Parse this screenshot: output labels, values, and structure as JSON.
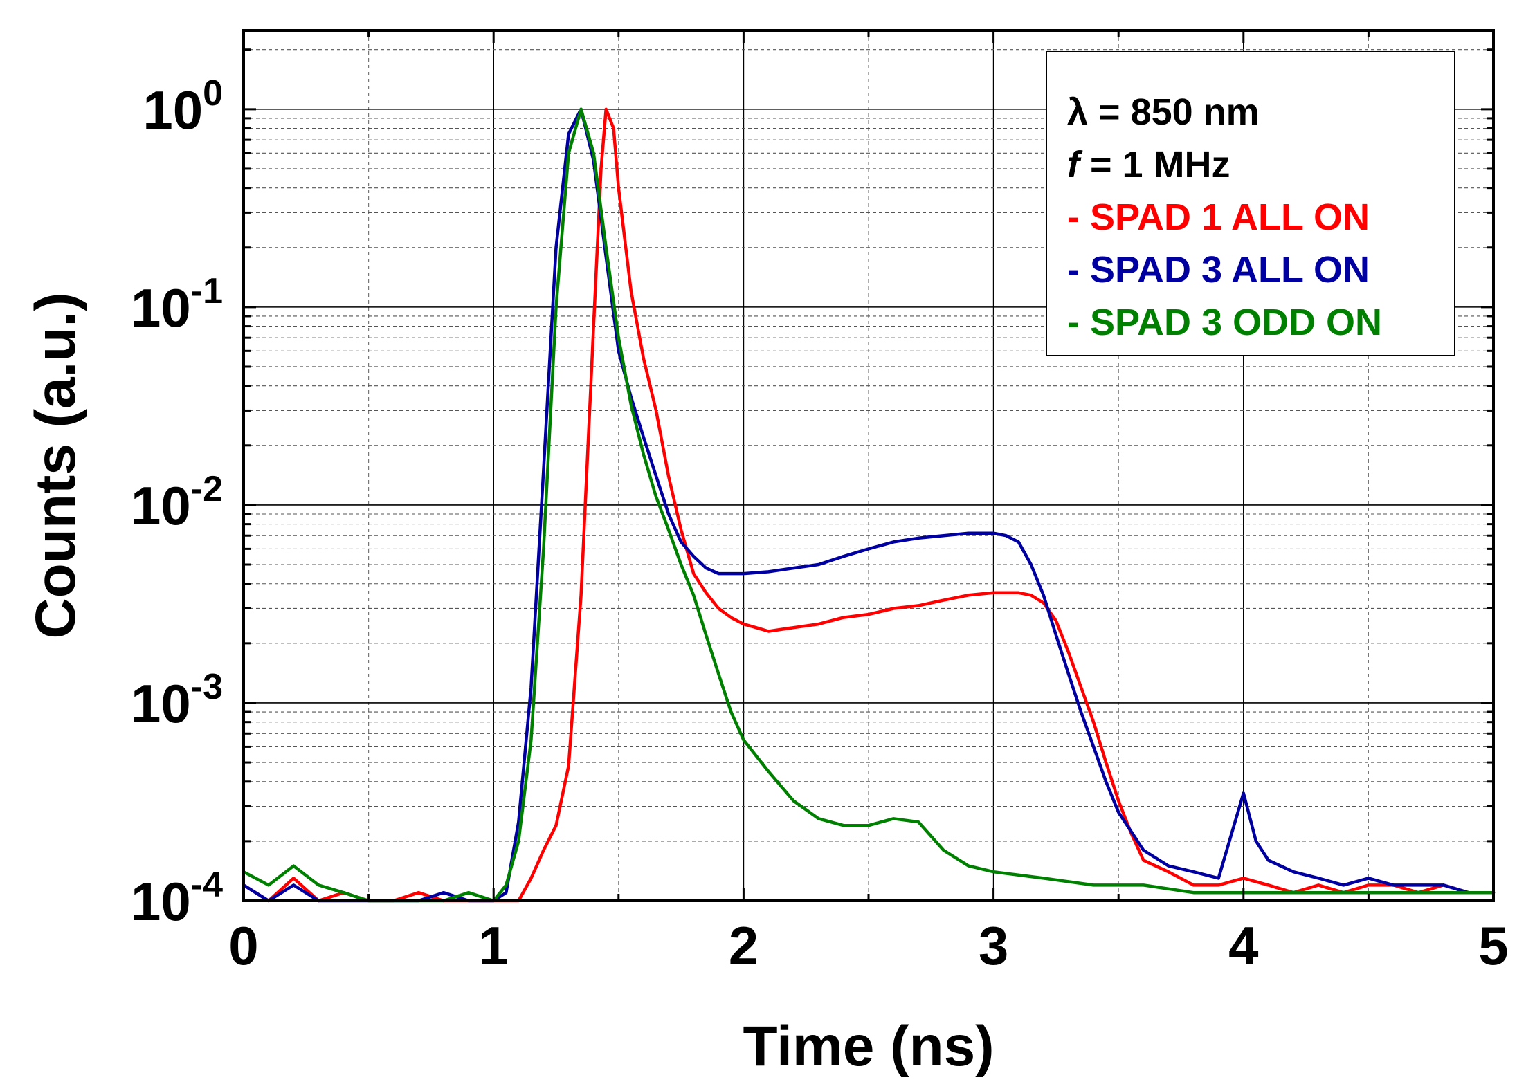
{
  "chart_data": {
    "type": "line",
    "xlabel": "Time (ns)",
    "ylabel": "Counts (a.u.)",
    "xlim": [
      0,
      5
    ],
    "ylim": [
      0.0001,
      2.5
    ],
    "y_scale": "log",
    "grid": true,
    "legend_placement": "top-right",
    "x_ticks": [
      "0",
      "1",
      "2",
      "3",
      "4",
      "5"
    ],
    "y_ticks": [
      {
        "base": "10",
        "exp": "-4"
      },
      {
        "base": "10",
        "exp": "-3"
      },
      {
        "base": "10",
        "exp": "-2"
      },
      {
        "base": "10",
        "exp": "-1"
      },
      {
        "base": "10",
        "exp": "0"
      }
    ],
    "legend_info": [
      "λ = 850 nm",
      "f = 1 MHz"
    ],
    "legend_info_parts": {
      "line1": {
        "symbol": "λ",
        "rest": " = 850 nm"
      },
      "line2": {
        "symbol": "f",
        "rest": " = 1 MHz"
      }
    },
    "series": [
      {
        "name": "- SPAD 1 ALL ON",
        "color": "#ff0000",
        "x": [
          0.0,
          0.1,
          0.2,
          0.3,
          0.4,
          0.5,
          0.6,
          0.7,
          0.8,
          0.9,
          1.0,
          1.05,
          1.1,
          1.15,
          1.2,
          1.25,
          1.3,
          1.35,
          1.4,
          1.43,
          1.45,
          1.48,
          1.5,
          1.55,
          1.6,
          1.65,
          1.7,
          1.75,
          1.8,
          1.85,
          1.9,
          1.95,
          2.0,
          2.05,
          2.1,
          2.2,
          2.3,
          2.4,
          2.5,
          2.6,
          2.7,
          2.8,
          2.9,
          3.0,
          3.1,
          3.15,
          3.2,
          3.25,
          3.3,
          3.35,
          3.4,
          3.45,
          3.5,
          3.55,
          3.6,
          3.7,
          3.8,
          3.9,
          4.0,
          4.1,
          4.2,
          4.3,
          4.4,
          4.5,
          4.6,
          4.7,
          4.8,
          4.9,
          5.0
        ],
        "y": [
          0.00012,
          0.0001,
          0.00013,
          0.0001,
          0.00011,
          0.0001,
          0.0001,
          0.00011,
          0.0001,
          0.0001,
          0.0001,
          0.0001,
          0.0001,
          0.00013,
          0.00018,
          0.00024,
          0.00048,
          0.0035,
          0.08,
          0.5,
          1.0,
          0.8,
          0.4,
          0.12,
          0.055,
          0.03,
          0.014,
          0.0075,
          0.0045,
          0.0036,
          0.003,
          0.0027,
          0.0025,
          0.0024,
          0.0023,
          0.0024,
          0.0025,
          0.0027,
          0.0028,
          0.003,
          0.0031,
          0.0033,
          0.0035,
          0.0036,
          0.0036,
          0.0035,
          0.0032,
          0.0026,
          0.0018,
          0.0012,
          0.0008,
          0.0005,
          0.00032,
          0.00022,
          0.00016,
          0.00014,
          0.00012,
          0.00012,
          0.00013,
          0.00012,
          0.00011,
          0.00012,
          0.00011,
          0.00012,
          0.00012,
          0.00011,
          0.00012,
          0.00011,
          0.00011
        ]
      },
      {
        "name": "- SPAD 3 ALL ON",
        "color": "#0000a0",
        "x": [
          0.0,
          0.1,
          0.2,
          0.3,
          0.4,
          0.5,
          0.6,
          0.7,
          0.8,
          0.9,
          1.0,
          1.05,
          1.1,
          1.15,
          1.2,
          1.25,
          1.3,
          1.35,
          1.4,
          1.45,
          1.5,
          1.55,
          1.6,
          1.65,
          1.7,
          1.75,
          1.8,
          1.85,
          1.9,
          2.0,
          2.1,
          2.2,
          2.3,
          2.4,
          2.5,
          2.6,
          2.7,
          2.8,
          2.9,
          3.0,
          3.05,
          3.1,
          3.15,
          3.2,
          3.25,
          3.3,
          3.35,
          3.4,
          3.45,
          3.5,
          3.6,
          3.7,
          3.8,
          3.9,
          4.0,
          4.05,
          4.1,
          4.2,
          4.3,
          4.4,
          4.5,
          4.6,
          4.7,
          4.8,
          4.9,
          5.0
        ],
        "y": [
          0.00012,
          0.0001,
          0.00012,
          0.0001,
          0.0001,
          0.0001,
          0.0001,
          0.0001,
          0.00011,
          0.0001,
          0.0001,
          0.00011,
          0.00025,
          0.0012,
          0.015,
          0.2,
          0.75,
          1.0,
          0.55,
          0.18,
          0.06,
          0.035,
          0.022,
          0.014,
          0.009,
          0.0065,
          0.0055,
          0.0048,
          0.0045,
          0.0045,
          0.0046,
          0.0048,
          0.005,
          0.0055,
          0.006,
          0.0065,
          0.0068,
          0.007,
          0.0072,
          0.0072,
          0.007,
          0.0065,
          0.005,
          0.0035,
          0.0022,
          0.0014,
          0.0009,
          0.0006,
          0.0004,
          0.00028,
          0.00018,
          0.00015,
          0.00014,
          0.00013,
          0.00035,
          0.0002,
          0.00016,
          0.00014,
          0.00013,
          0.00012,
          0.00013,
          0.00012,
          0.00012,
          0.00012,
          0.00011,
          0.00011
        ]
      },
      {
        "name": "- SPAD 3 ODD ON",
        "color": "#008000",
        "x": [
          0.0,
          0.1,
          0.2,
          0.3,
          0.4,
          0.5,
          0.6,
          0.7,
          0.8,
          0.9,
          1.0,
          1.05,
          1.1,
          1.15,
          1.2,
          1.25,
          1.3,
          1.35,
          1.4,
          1.45,
          1.5,
          1.55,
          1.6,
          1.65,
          1.7,
          1.75,
          1.8,
          1.85,
          1.9,
          1.95,
          2.0,
          2.1,
          2.2,
          2.3,
          2.4,
          2.5,
          2.6,
          2.7,
          2.8,
          2.9,
          3.0,
          3.2,
          3.4,
          3.6,
          3.8,
          4.0,
          4.2,
          4.4,
          4.6,
          4.8,
          5.0
        ],
        "y": [
          0.00014,
          0.00012,
          0.00015,
          0.00012,
          0.00011,
          0.0001,
          0.0001,
          0.0001,
          0.0001,
          0.00011,
          0.0001,
          0.00012,
          0.0002,
          0.00065,
          0.006,
          0.1,
          0.6,
          1.0,
          0.6,
          0.2,
          0.07,
          0.032,
          0.018,
          0.011,
          0.0075,
          0.005,
          0.0035,
          0.0022,
          0.0014,
          0.0009,
          0.00065,
          0.00045,
          0.00032,
          0.00026,
          0.00024,
          0.00024,
          0.00026,
          0.00025,
          0.00018,
          0.00015,
          0.00014,
          0.00013,
          0.00012,
          0.00012,
          0.00011,
          0.00011,
          0.00011,
          0.00011,
          0.00011,
          0.00011,
          0.00011
        ]
      }
    ]
  }
}
